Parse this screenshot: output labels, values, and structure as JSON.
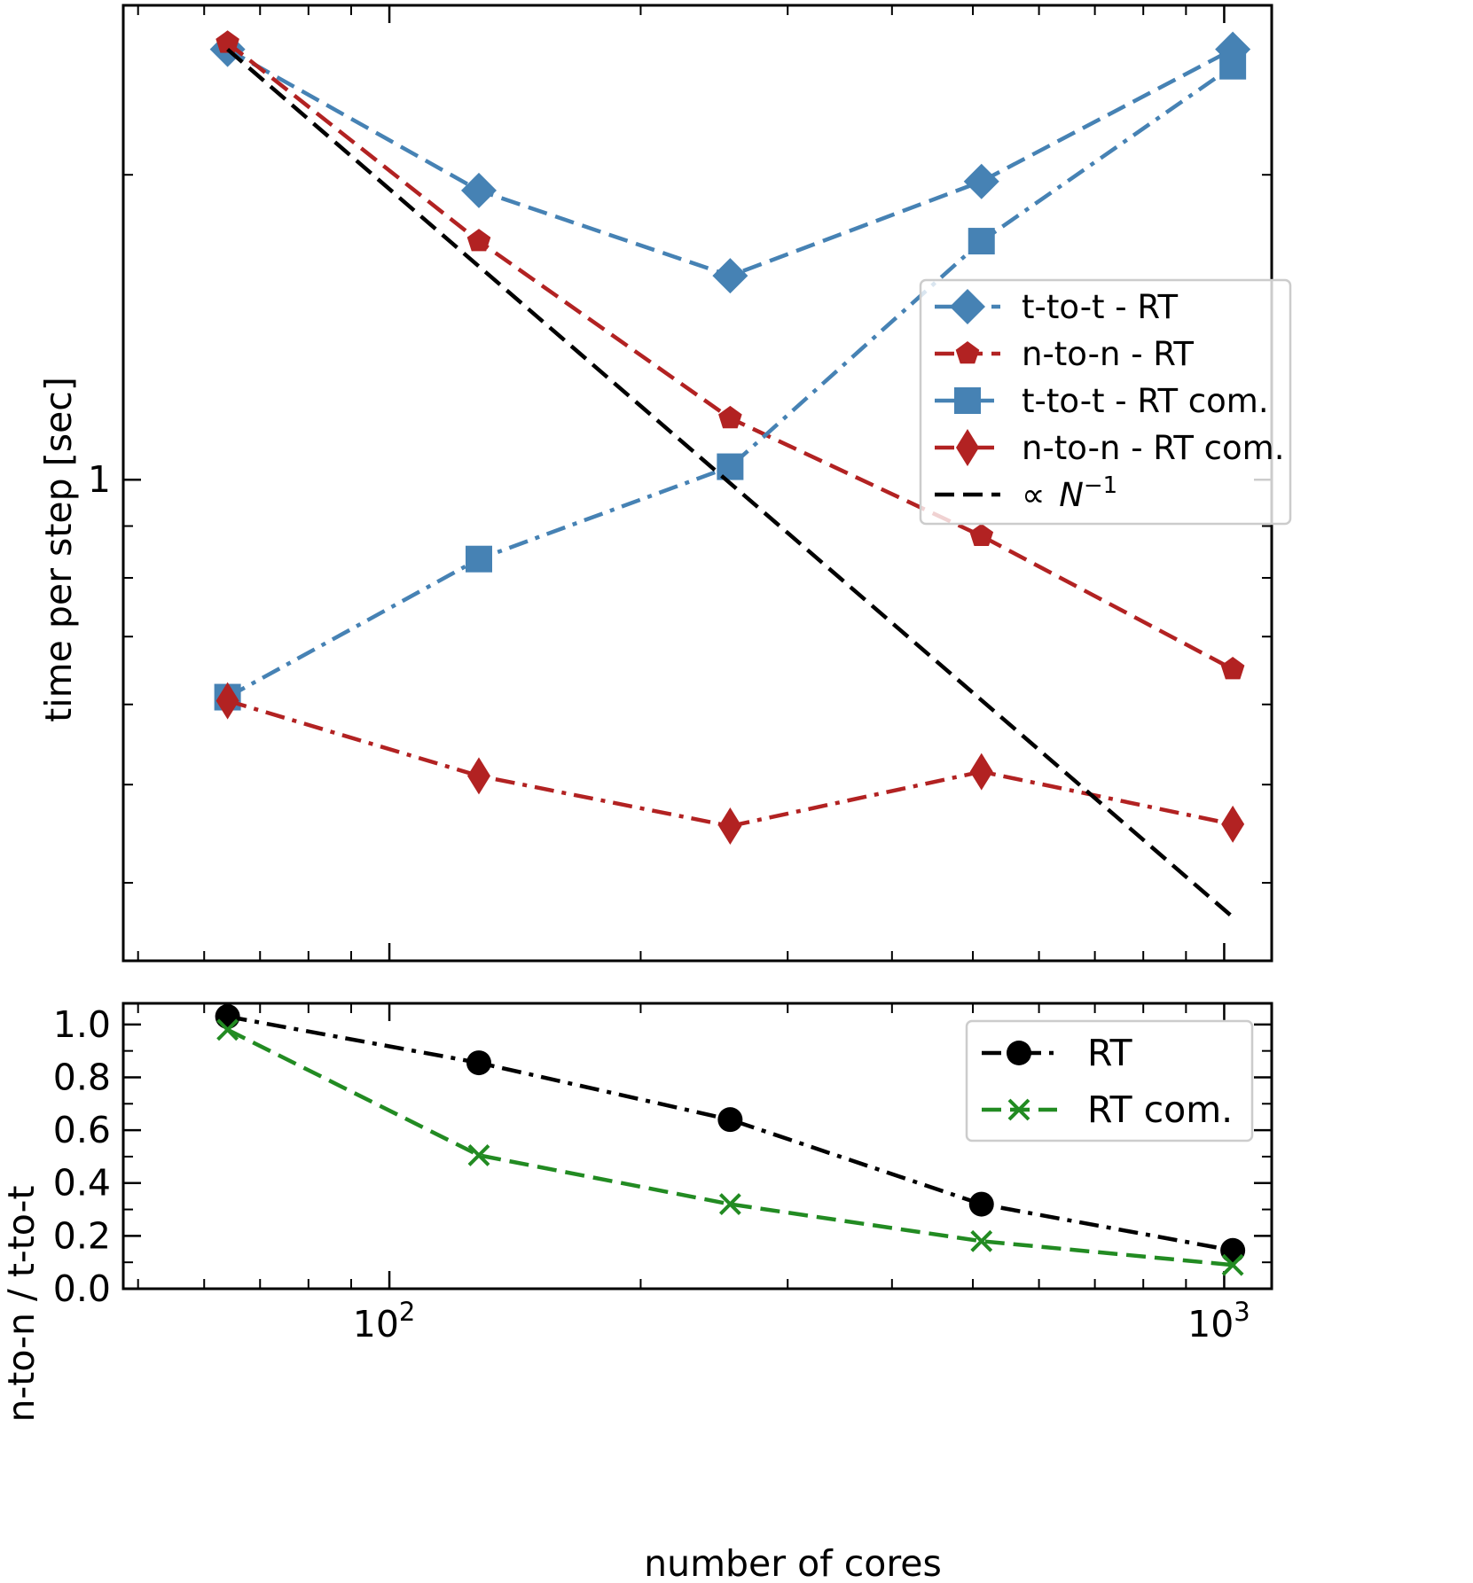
{
  "chart_data": [
    {
      "type": "line",
      "panel": "top",
      "xscale": "log",
      "yscale": "log",
      "xlim": [
        48,
        1140
      ],
      "ylim": [
        0.335,
        2.94
      ],
      "ylabel": "time per step [sec]",
      "xlabel": "",
      "y_tick_labels": [
        {
          "value": 1,
          "label": "1"
        }
      ],
      "x": [
        64,
        128,
        256,
        512,
        1024
      ],
      "series": [
        {
          "name": "t-to-t - RT",
          "values": [
            2.66,
            1.93,
            1.59,
            1.97,
            2.66
          ],
          "color": "#4682b4",
          "marker": "diamond",
          "linestyle": "dashed"
        },
        {
          "name": "n-to-n - RT",
          "values": [
            2.7,
            1.72,
            1.15,
            0.88,
            0.65
          ],
          "color": "#b22222",
          "marker": "pentagon",
          "linestyle": "dashed"
        },
        {
          "name": "t-to-t - RT com.",
          "values": [
            0.61,
            0.835,
            1.03,
            1.72,
            2.56
          ],
          "color": "#4682b4",
          "marker": "square",
          "linestyle": "dashdot"
        },
        {
          "name": "n-to-n - RT com.",
          "values": [
            0.605,
            0.51,
            0.455,
            0.515,
            0.457
          ],
          "color": "#b22222",
          "marker": "thin_diamond",
          "linestyle": "dashdot"
        },
        {
          "name": "∝ N⁻¹",
          "x": [
            64,
            1024
          ],
          "values": [
            2.66,
            0.37
          ],
          "color": "#000000",
          "marker": "none",
          "linestyle": "dashed"
        }
      ],
      "legend": {
        "position": "center-right",
        "entries": [
          {
            "label": "t-to-t - RT",
            "color": "#4682b4",
            "marker": "diamond",
            "linestyle": "dashed"
          },
          {
            "label": "n-to-n - RT",
            "color": "#b22222",
            "marker": "pentagon",
            "linestyle": "dashed"
          },
          {
            "label": "t-to-t - RT com.",
            "color": "#4682b4",
            "marker": "square",
            "linestyle": "dashdot"
          },
          {
            "label": "n-to-n - RT com.",
            "color": "#b22222",
            "marker": "thin_diamond",
            "linestyle": "dashdot"
          },
          {
            "label_prefix": "∝ ",
            "label_var": "N",
            "label_sup": "−1",
            "color": "#000000",
            "marker": "none",
            "linestyle": "dashed"
          }
        ]
      }
    },
    {
      "type": "line",
      "panel": "bottom",
      "xscale": "log",
      "xlim": [
        48,
        1140
      ],
      "ylim": [
        0.0,
        1.08
      ],
      "ylabel": "n-to-n / t-to-t",
      "xlabel": "number of cores",
      "y_ticks": [
        0.0,
        0.2,
        0.4,
        0.6,
        0.8,
        1.0
      ],
      "y_tick_labels": [
        "0.0",
        "0.2",
        "0.4",
        "0.6",
        "0.8",
        "1.0"
      ],
      "x_tick_labels": [
        {
          "value": 100,
          "base": "10",
          "exp": "2"
        },
        {
          "value": 1000,
          "base": "10",
          "exp": "3"
        }
      ],
      "x": [
        64,
        128,
        256,
        512,
        1024
      ],
      "series": [
        {
          "name": "RT",
          "values": [
            1.03,
            0.855,
            0.64,
            0.32,
            0.145
          ],
          "color": "#000000",
          "marker": "circle",
          "linestyle": "dashdot"
        },
        {
          "name": "RT com.",
          "values": [
            0.98,
            0.505,
            0.32,
            0.18,
            0.09
          ],
          "color": "#228b22",
          "marker": "x",
          "linestyle": "dashed"
        }
      ],
      "legend": {
        "position": "top-right",
        "entries": [
          {
            "label": "RT",
            "color": "#000000",
            "marker": "circle",
            "linestyle": "dashdot"
          },
          {
            "label": "RT com.",
            "color": "#228b22",
            "marker": "x",
            "linestyle": "dashed"
          }
        ]
      }
    }
  ]
}
